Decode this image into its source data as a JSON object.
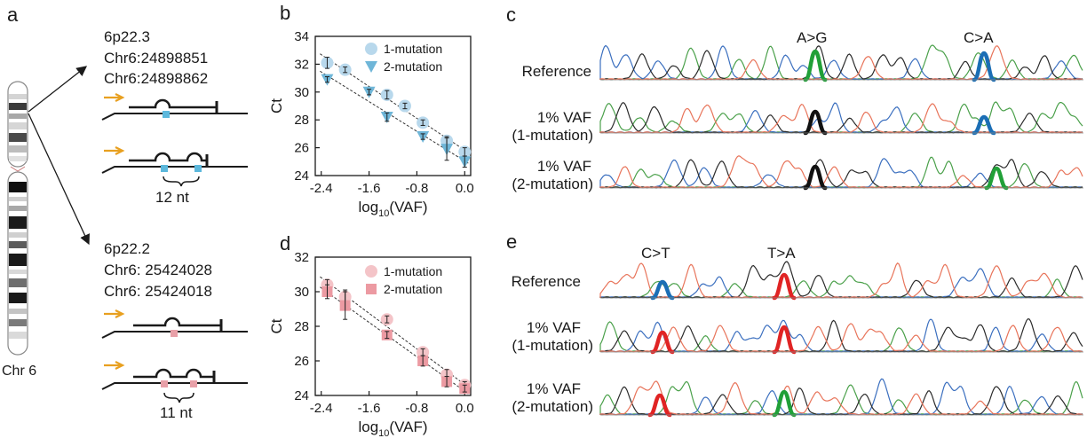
{
  "figure": {
    "panels": {
      "a": "a",
      "b": "b",
      "c": "c",
      "d": "d",
      "e": "e"
    },
    "colors": {
      "blue_primer": "#5cb8dc",
      "pink_primer": "#e8a0a8",
      "arrow_orange": "#e8a020",
      "trace_A": "#4aa04a",
      "trace_C": "#3b6fbf",
      "trace_G": "#2b2b2b",
      "trace_T": "#e8745a",
      "hl_green": "#21a038",
      "hl_blue": "#1b6eb5",
      "hl_red": "#e02424",
      "hl_black": "#111111"
    }
  },
  "panel_a": {
    "chromosome_label": "Chr 6",
    "locus1": {
      "band": "6p22.3",
      "pos1": "Chr6:24898851",
      "pos2": "Chr6:24898862",
      "spacing": "12 nt"
    },
    "locus2": {
      "band": "6p22.2",
      "pos1": "Chr6: 25424028",
      "pos2": "Chr6: 25424018",
      "spacing": "11 nt"
    }
  },
  "panel_b": {
    "chart_data": {
      "type": "scatter",
      "xlabel_main": "log",
      "xlabel_sub": "10",
      "xlabel_tail": "(VAF)",
      "ylabel": "Ct",
      "xlim": [
        -2.5,
        0.1
      ],
      "ylim": [
        24,
        34
      ],
      "xticks": [
        -2.4,
        -1.6,
        -0.8,
        0.0
      ],
      "xtick_labels": [
        "-2.4",
        "-1.6",
        "-0.8",
        "0.0"
      ],
      "yticks": [
        24,
        26,
        28,
        30,
        32,
        34
      ],
      "ytick_labels": [
        "24",
        "26",
        "28",
        "30",
        "32",
        "34"
      ],
      "series": [
        {
          "name": "1-mutation",
          "marker": "circle",
          "color": "#b8d8ec",
          "x": [
            -2.3,
            -2.0,
            -1.3,
            -1.0,
            -0.7,
            -0.3,
            0.0
          ],
          "y": [
            32.1,
            31.6,
            29.8,
            29.0,
            27.8,
            26.5,
            25.7
          ],
          "err": [
            0.4,
            0.2,
            0.3,
            0.2,
            0.2,
            0.3,
            0.3
          ]
        },
        {
          "name": "2-mutation",
          "marker": "triangle",
          "color": "#6fb6d8",
          "x": [
            -2.3,
            -1.6,
            -1.3,
            -0.7,
            -0.3,
            0.0
          ],
          "y": [
            30.9,
            30.0,
            28.2,
            26.8,
            25.9,
            25.0
          ],
          "err": [
            0.2,
            0.2,
            0.3,
            0.2,
            0.8,
            0.4
          ]
        }
      ]
    }
  },
  "panel_d": {
    "chart_data": {
      "type": "scatter",
      "xlabel_main": "log",
      "xlabel_sub": "10",
      "xlabel_tail": "(VAF)",
      "ylabel": "Ct",
      "xlim": [
        -2.5,
        0.1
      ],
      "ylim": [
        24,
        32
      ],
      "xticks": [
        -2.4,
        -1.6,
        -0.8,
        0.0
      ],
      "xtick_labels": [
        "-2.4",
        "-1.6",
        "-0.8",
        "0.0"
      ],
      "yticks": [
        24,
        26,
        28,
        30,
        32
      ],
      "ytick_labels": [
        "24",
        "26",
        "28",
        "30",
        "32"
      ],
      "series": [
        {
          "name": "1-mutation",
          "marker": "circle",
          "color": "#f4c4c8",
          "x": [
            -2.3,
            -2.0,
            -1.3,
            -0.7,
            -0.3,
            0.0
          ],
          "y": [
            30.4,
            29.7,
            28.4,
            26.5,
            25.2,
            24.6
          ],
          "err": [
            0.3,
            0.4,
            0.2,
            0.2,
            0.3,
            0.2
          ]
        },
        {
          "name": "2-mutation",
          "marker": "square",
          "color": "#ec9aa2",
          "x": [
            -2.3,
            -2.0,
            -1.3,
            -0.7,
            -0.3,
            0.0
          ],
          "y": [
            30.0,
            29.2,
            27.5,
            26.0,
            24.8,
            24.4
          ],
          "err": [
            0.4,
            0.8,
            0.2,
            0.3,
            0.3,
            0.2
          ]
        }
      ]
    }
  },
  "panel_c": {
    "mutations": [
      "A>G",
      "C>A"
    ],
    "rows": [
      "Reference",
      "1% VAF",
      "(1-mutation)",
      "1% VAF",
      "(2-mutation)"
    ]
  },
  "panel_e": {
    "mutations": [
      "C>T",
      "T>A"
    ],
    "rows": [
      "Reference",
      "1% VAF",
      "(1-mutation)",
      "1% VAF",
      "(2-mutation)"
    ]
  }
}
